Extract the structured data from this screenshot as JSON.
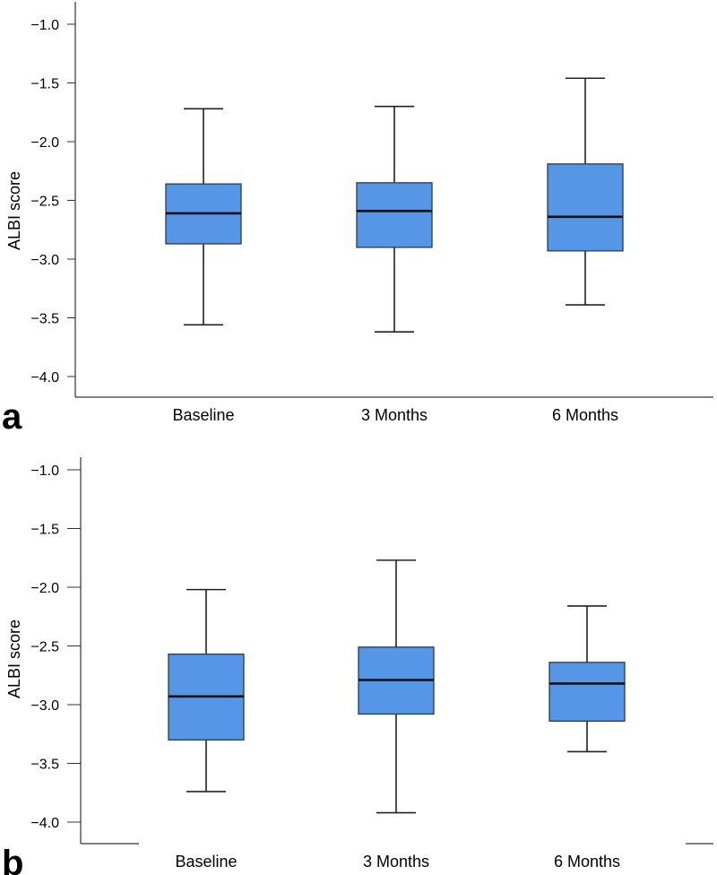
{
  "chart_data": [
    {
      "type": "boxplot",
      "panel_label": "a",
      "title": "",
      "xlabel": "",
      "ylabel": "ALBI score",
      "ylim": [
        -4.2,
        -0.8
      ],
      "y_ticks": [
        -1.0,
        -1.5,
        -2.0,
        -2.5,
        -3.0,
        -3.5,
        -4.0
      ],
      "y_tick_labels": [
        "−1.0",
        "−1.5",
        "−2.0",
        "−2.5",
        "−3.0",
        "−3.5",
        "−4.0"
      ],
      "categories": [
        "Baseline",
        "3 Months",
        "6 Months"
      ],
      "boxes": [
        {
          "category": "Baseline",
          "whisker_high": -1.72,
          "q3": -2.36,
          "median": -2.61,
          "q1": -2.87,
          "whisker_low": -3.56
        },
        {
          "category": "3 Months",
          "whisker_high": -1.7,
          "q3": -2.35,
          "median": -2.59,
          "q1": -2.9,
          "whisker_low": -3.62
        },
        {
          "category": "6 Months",
          "whisker_high": -1.46,
          "q3": -2.19,
          "median": -2.64,
          "q1": -2.93,
          "whisker_low": -3.39
        }
      ],
      "box_color": "#5596e6",
      "grid": false
    },
    {
      "type": "boxplot",
      "panel_label": "b",
      "title": "",
      "xlabel": "",
      "ylabel": "ALBI score",
      "ylim": [
        -4.2,
        -0.8
      ],
      "y_ticks": [
        -1.0,
        -1.5,
        -2.0,
        -2.5,
        -3.0,
        -3.5,
        -4.0
      ],
      "y_tick_labels": [
        "−1.0",
        "−1.5",
        "−2.0",
        "−2.5",
        "−3.0",
        "−3.5",
        "−4.0"
      ],
      "categories": [
        "Baseline",
        "3 Months",
        "6 Months"
      ],
      "boxes": [
        {
          "category": "Baseline",
          "whisker_high": -2.02,
          "q3": -2.57,
          "median": -2.93,
          "q1": -3.3,
          "whisker_low": -3.74
        },
        {
          "category": "3 Months",
          "whisker_high": -1.77,
          "q3": -2.51,
          "median": -2.79,
          "q1": -3.08,
          "whisker_low": -3.92
        },
        {
          "category": "6 Months",
          "whisker_high": -2.16,
          "q3": -2.64,
          "median": -2.82,
          "q1": -3.14,
          "whisker_low": -3.4
        }
      ],
      "box_color": "#5596e6",
      "grid": false
    }
  ]
}
